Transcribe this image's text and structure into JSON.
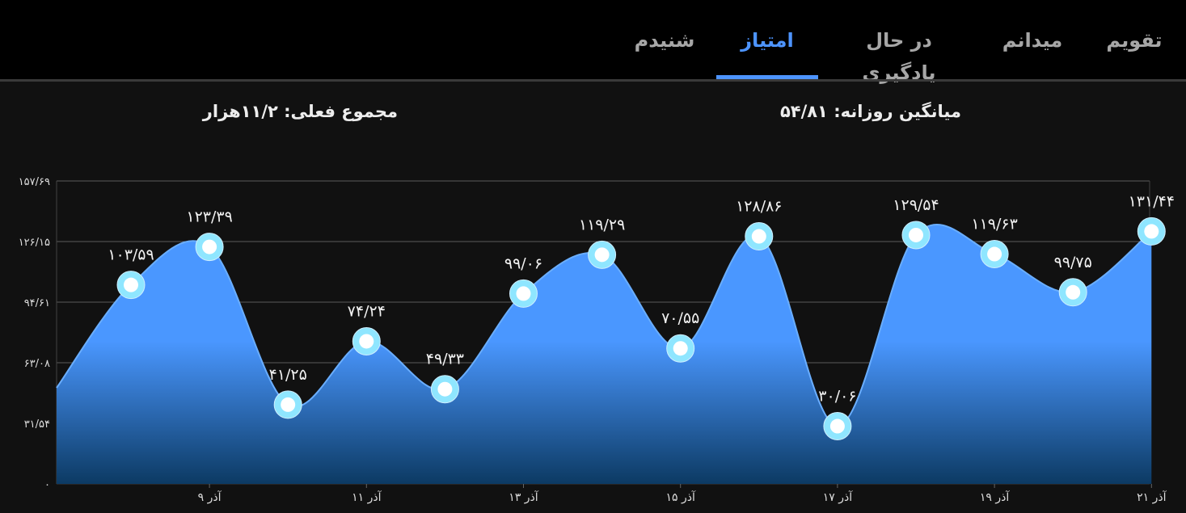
{
  "tabs": [
    {
      "label": "تقویم",
      "active": false
    },
    {
      "label": "میدانم",
      "active": false
    },
    {
      "label": "در حال یادگیری",
      "active": false
    },
    {
      "label": "امتیاز",
      "active": true
    },
    {
      "label": "شنیدم",
      "active": false
    }
  ],
  "stats": {
    "daily_average": "میانگین روزانه: ۵۴/۸۱",
    "total": "مجموع فعلی: ۱۱/۲هزار"
  },
  "colors": {
    "accent": "#4d94ff",
    "area_top": "#4a97ff",
    "area_bottom": "#0c3a63",
    "marker_ring": "#8fe6ff",
    "background": "#111111"
  },
  "chart_data": {
    "type": "area",
    "yticks": [
      "۰",
      "۳۱/۵۴",
      "۶۳/۰۸",
      "۹۴/۶۱",
      "۱۲۶/۱۵",
      "۱۵۷/۶۹"
    ],
    "ylim": [
      0,
      157.69
    ],
    "xtick_labels": [
      "۹ آذر",
      "۱۱ آذر",
      "۱۳ آذر",
      "۱۵ آذر",
      "۱۷ آذر",
      "۱۹ آذر",
      "۲۱ آذر"
    ],
    "xtick_index": [
      1,
      3,
      5,
      7,
      9,
      11,
      13
    ],
    "start_value": 50,
    "values": [
      103.59,
      123.39,
      41.25,
      74.24,
      49.33,
      99.06,
      119.29,
      70.55,
      128.86,
      30.06,
      129.54,
      119.63,
      99.75,
      131.44
    ],
    "labels": [
      "۱۰۳/۵۹",
      "۱۲۳/۳۹",
      "۴۱/۲۵",
      "۷۴/۲۴",
      "۴۹/۳۳",
      "۹۹/۰۶",
      "۱۱۹/۲۹",
      "۷۰/۵۵",
      "۱۲۸/۸۶",
      "۳۰/۰۶",
      "۱۲۹/۵۴",
      "۱۱۹/۶۳",
      "۹۹/۷۵",
      "۱۳۱/۴۴"
    ],
    "grid": true
  }
}
